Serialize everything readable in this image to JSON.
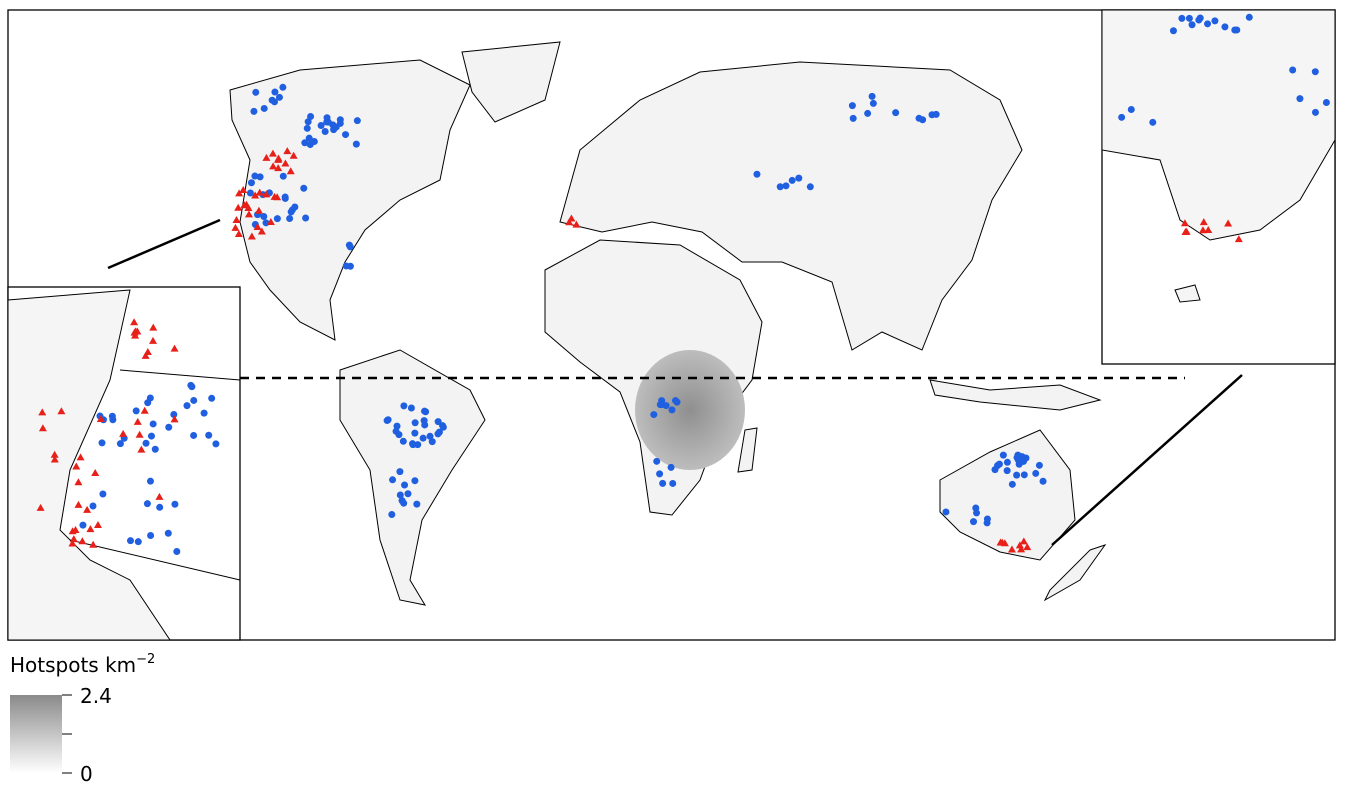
{
  "legend": {
    "title": "Hotspots km",
    "title_superscript": "−2",
    "ticks": [
      0,
      2.4
    ]
  }
}
